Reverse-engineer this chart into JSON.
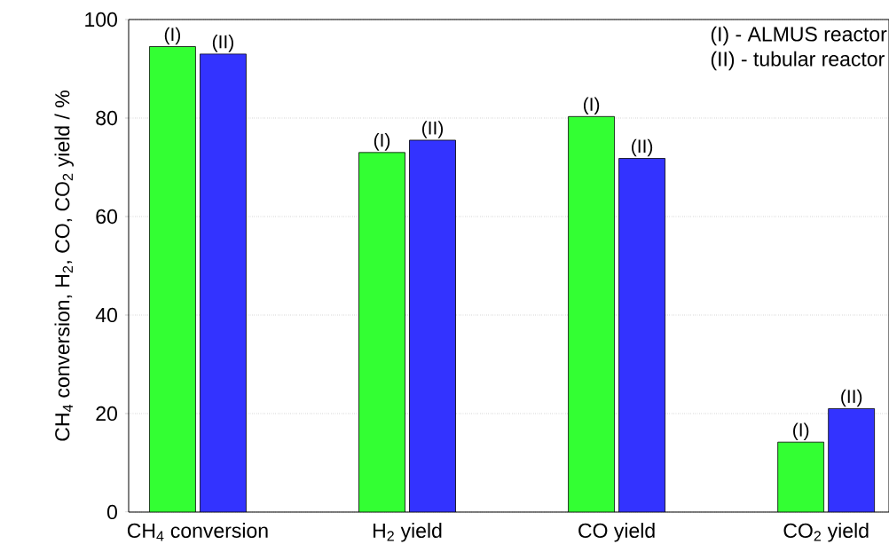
{
  "chart_data": {
    "type": "bar",
    "ylabel": "CH$_{4}$ conversion, H$_{2}$, CO, CO$_{2}$ yield / %",
    "categories": [
      "CH$_{4}$ conversion",
      "H$_{2}$ yield",
      "CO yield",
      "CO$_{2}$ yield"
    ],
    "series": [
      {
        "color": "#33ff33",
        "values": [
          94.5,
          73,
          80.3,
          14.2
        ],
        "value_labels": [
          "(I)",
          "(I)",
          "(I)",
          "(I)"
        ]
      },
      {
        "color": "#3333ff",
        "values": [
          93,
          75.5,
          71.8,
          21
        ],
        "value_labels": [
          "(II)",
          "(II)",
          "(II)",
          "(II)"
        ]
      }
    ],
    "annotations": [
      "(I) - ALMUS reactor",
      "(II) - tubular reactor"
    ],
    "ylim": [
      0,
      100
    ],
    "yticks": [
      0,
      20,
      40,
      60,
      80,
      100
    ],
    "grid": "y"
  }
}
